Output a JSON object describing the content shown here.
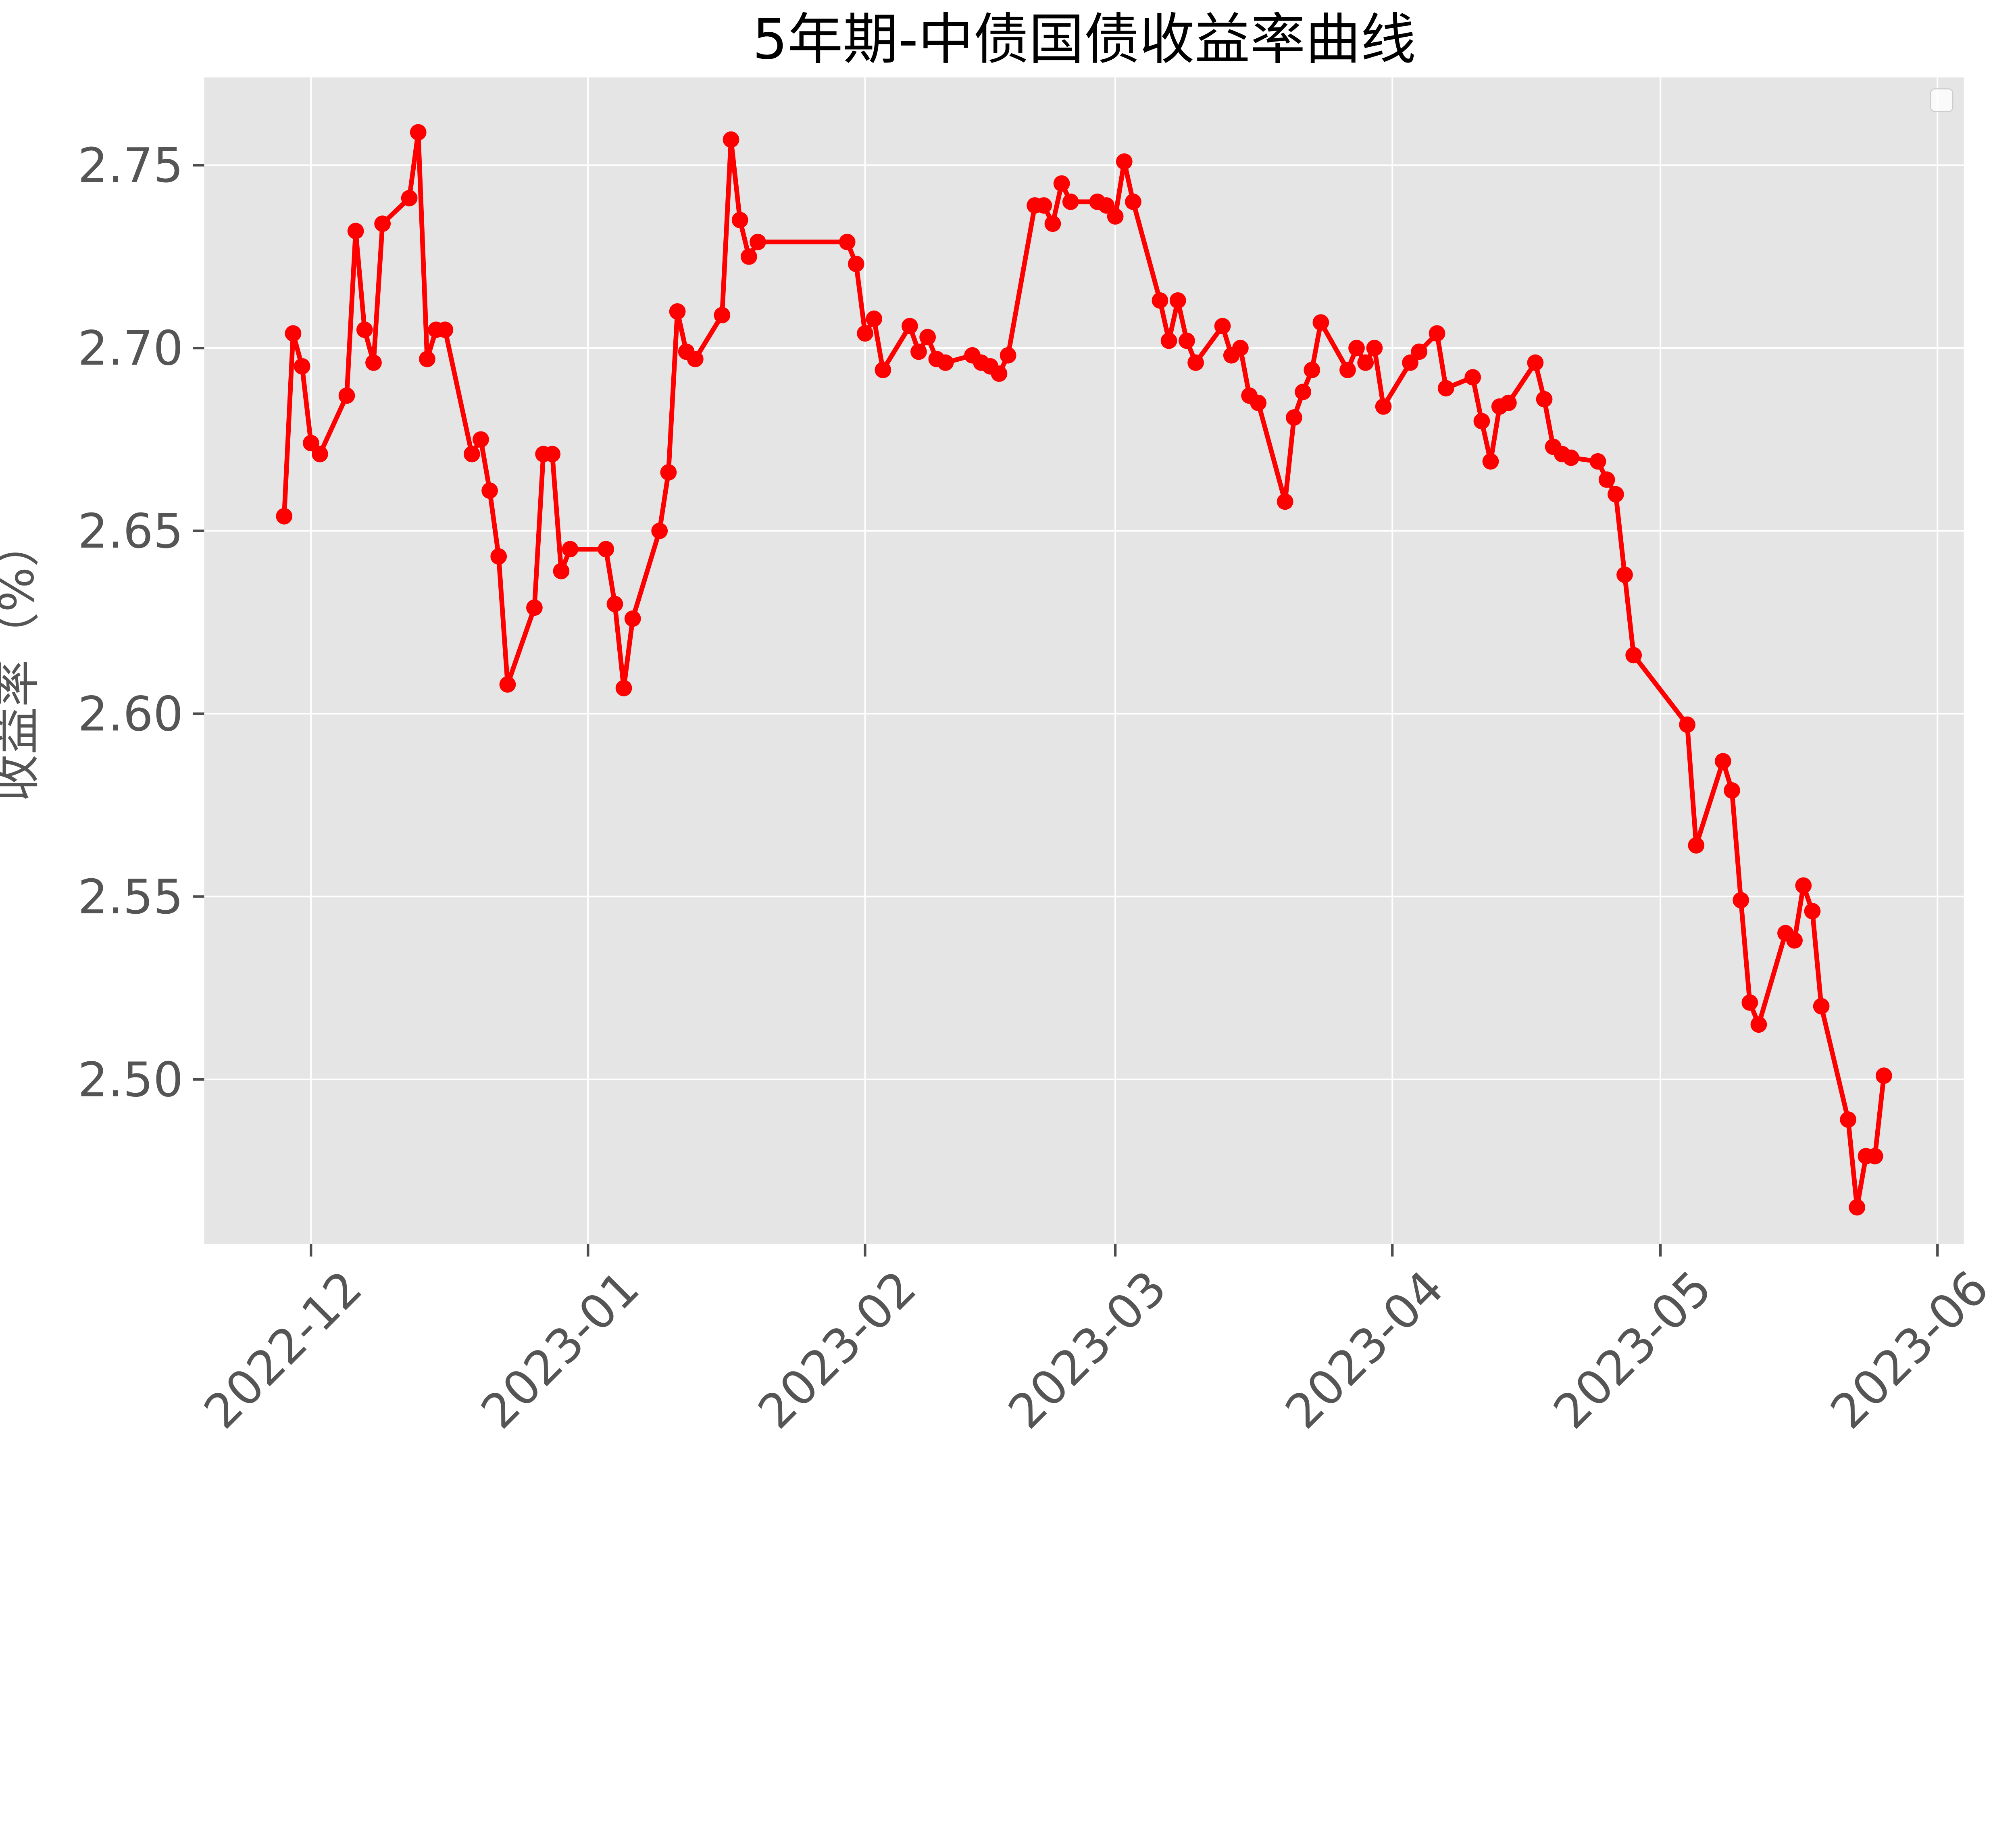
{
  "title": "5年期-中债国债收益率曲线",
  "y_axis": {
    "label": "收益率（%）",
    "tick_labels": [
      "2.50",
      "2.55",
      "2.60",
      "2.65",
      "2.70",
      "2.75"
    ],
    "tick_values": [
      2.5,
      2.55,
      2.6,
      2.65,
      2.7,
      2.75
    ]
  },
  "x_axis": {
    "ticks": [
      {
        "label": "2022-12",
        "date": "2022-12-01"
      },
      {
        "label": "2023-01",
        "date": "2023-01-01"
      },
      {
        "label": "2023-02",
        "date": "2023-02-01"
      },
      {
        "label": "2023-03",
        "date": "2023-03-01"
      },
      {
        "label": "2023-04",
        "date": "2023-04-01"
      },
      {
        "label": "2023-05",
        "date": "2023-05-01"
      },
      {
        "label": "2023-06",
        "date": "2023-06-01"
      }
    ]
  },
  "legend": {
    "visible": true,
    "entries": []
  },
  "colors": {
    "line": "#ff0000",
    "plot_background": "#e5e5e5",
    "grid": "#ffffff",
    "tick_text": "#555555",
    "title_text": "#000000",
    "legend_border": "#cccccc"
  },
  "chart_data": {
    "type": "line",
    "title": "5年期-中债国债收益率曲线",
    "xlabel": "",
    "ylabel": "收益率（%）",
    "ylim": [
      2.455,
      2.774
    ],
    "xlim_days_vs_first_point": [
      -8.95,
      187.95
    ],
    "grid": true,
    "legend_position": "upper right (empty box)",
    "marker": "circle",
    "y_tick_values": [
      2.5,
      2.55,
      2.6,
      2.65,
      2.7,
      2.75
    ],
    "x_tick_labels": [
      "2022-12",
      "2023-01",
      "2023-02",
      "2023-03",
      "2023-04",
      "2023-05",
      "2023-06"
    ],
    "series": [
      {
        "name": "5年期-中债国债收益率",
        "color": "#ff0000",
        "points": [
          [
            "2022-11-28",
            2.654
          ],
          [
            "2022-11-29",
            2.704
          ],
          [
            "2022-11-30",
            2.695
          ],
          [
            "2022-12-01",
            2.674
          ],
          [
            "2022-12-02",
            2.671
          ],
          [
            "2022-12-05",
            2.687
          ],
          [
            "2022-12-06",
            2.732
          ],
          [
            "2022-12-07",
            2.705
          ],
          [
            "2022-12-08",
            2.696
          ],
          [
            "2022-12-09",
            2.734
          ],
          [
            "2022-12-12",
            2.741
          ],
          [
            "2022-12-13",
            2.759
          ],
          [
            "2022-12-14",
            2.697
          ],
          [
            "2022-12-15",
            2.705
          ],
          [
            "2022-12-16",
            2.705
          ],
          [
            "2022-12-19",
            2.671
          ],
          [
            "2022-12-20",
            2.675
          ],
          [
            "2022-12-21",
            2.661
          ],
          [
            "2022-12-22",
            2.643
          ],
          [
            "2022-12-23",
            2.608
          ],
          [
            "2022-12-26",
            2.629
          ],
          [
            "2022-12-27",
            2.671
          ],
          [
            "2022-12-28",
            2.671
          ],
          [
            "2022-12-29",
            2.639
          ],
          [
            "2022-12-30",
            2.645
          ],
          [
            "2023-01-03",
            2.645
          ],
          [
            "2023-01-04",
            2.63
          ],
          [
            "2023-01-05",
            2.607
          ],
          [
            "2023-01-06",
            2.626
          ],
          [
            "2023-01-09",
            2.65
          ],
          [
            "2023-01-10",
            2.666
          ],
          [
            "2023-01-11",
            2.71
          ],
          [
            "2023-01-12",
            2.699
          ],
          [
            "2023-01-13",
            2.697
          ],
          [
            "2023-01-16",
            2.709
          ],
          [
            "2023-01-17",
            2.757
          ],
          [
            "2023-01-18",
            2.735
          ],
          [
            "2023-01-19",
            2.725
          ],
          [
            "2023-01-20",
            2.729
          ],
          [
            "2023-01-30",
            2.729
          ],
          [
            "2023-01-31",
            2.723
          ],
          [
            "2023-02-01",
            2.704
          ],
          [
            "2023-02-02",
            2.708
          ],
          [
            "2023-02-03",
            2.694
          ],
          [
            "2023-02-06",
            2.706
          ],
          [
            "2023-02-07",
            2.699
          ],
          [
            "2023-02-08",
            2.703
          ],
          [
            "2023-02-09",
            2.697
          ],
          [
            "2023-02-10",
            2.696
          ],
          [
            "2023-02-13",
            2.698
          ],
          [
            "2023-02-14",
            2.696
          ],
          [
            "2023-02-15",
            2.695
          ],
          [
            "2023-02-16",
            2.693
          ],
          [
            "2023-02-17",
            2.698
          ],
          [
            "2023-02-20",
            2.739
          ],
          [
            "2023-02-21",
            2.739
          ],
          [
            "2023-02-22",
            2.734
          ],
          [
            "2023-02-23",
            2.745
          ],
          [
            "2023-02-24",
            2.74
          ],
          [
            "2023-02-27",
            2.74
          ],
          [
            "2023-02-28",
            2.739
          ],
          [
            "2023-03-01",
            2.736
          ],
          [
            "2023-03-02",
            2.751
          ],
          [
            "2023-03-03",
            2.74
          ],
          [
            "2023-03-06",
            2.713
          ],
          [
            "2023-03-07",
            2.702
          ],
          [
            "2023-03-08",
            2.713
          ],
          [
            "2023-03-09",
            2.702
          ],
          [
            "2023-03-10",
            2.696
          ],
          [
            "2023-03-13",
            2.706
          ],
          [
            "2023-03-14",
            2.698
          ],
          [
            "2023-03-15",
            2.7
          ],
          [
            "2023-03-16",
            2.687
          ],
          [
            "2023-03-17",
            2.685
          ],
          [
            "2023-03-20",
            2.658
          ],
          [
            "2023-03-21",
            2.681
          ],
          [
            "2023-03-22",
            2.688
          ],
          [
            "2023-03-23",
            2.694
          ],
          [
            "2023-03-24",
            2.707
          ],
          [
            "2023-03-27",
            2.694
          ],
          [
            "2023-03-28",
            2.7
          ],
          [
            "2023-03-29",
            2.696
          ],
          [
            "2023-03-30",
            2.7
          ],
          [
            "2023-03-31",
            2.684
          ],
          [
            "2023-04-03",
            2.696
          ],
          [
            "2023-04-04",
            2.699
          ],
          [
            "2023-04-06",
            2.704
          ],
          [
            "2023-04-07",
            2.689
          ],
          [
            "2023-04-10",
            2.692
          ],
          [
            "2023-04-11",
            2.68
          ],
          [
            "2023-04-12",
            2.669
          ],
          [
            "2023-04-13",
            2.684
          ],
          [
            "2023-04-14",
            2.685
          ],
          [
            "2023-04-17",
            2.696
          ],
          [
            "2023-04-18",
            2.686
          ],
          [
            "2023-04-19",
            2.673
          ],
          [
            "2023-04-20",
            2.671
          ],
          [
            "2023-04-21",
            2.67
          ],
          [
            "2023-04-24",
            2.669
          ],
          [
            "2023-04-25",
            2.664
          ],
          [
            "2023-04-26",
            2.66
          ],
          [
            "2023-04-27",
            2.638
          ],
          [
            "2023-04-28",
            2.616
          ],
          [
            "2023-05-04",
            2.597
          ],
          [
            "2023-05-05",
            2.564
          ],
          [
            "2023-05-08",
            2.587
          ],
          [
            "2023-05-09",
            2.579
          ],
          [
            "2023-05-10",
            2.549
          ],
          [
            "2023-05-11",
            2.521
          ],
          [
            "2023-05-12",
            2.515
          ],
          [
            "2023-05-15",
            2.54
          ],
          [
            "2023-05-16",
            2.538
          ],
          [
            "2023-05-17",
            2.553
          ],
          [
            "2023-05-18",
            2.546
          ],
          [
            "2023-05-19",
            2.52
          ],
          [
            "2023-05-22",
            2.489
          ],
          [
            "2023-05-23",
            2.465
          ],
          [
            "2023-05-24",
            2.479
          ],
          [
            "2023-05-25",
            2.479
          ],
          [
            "2023-05-26",
            2.501
          ]
        ]
      }
    ]
  }
}
